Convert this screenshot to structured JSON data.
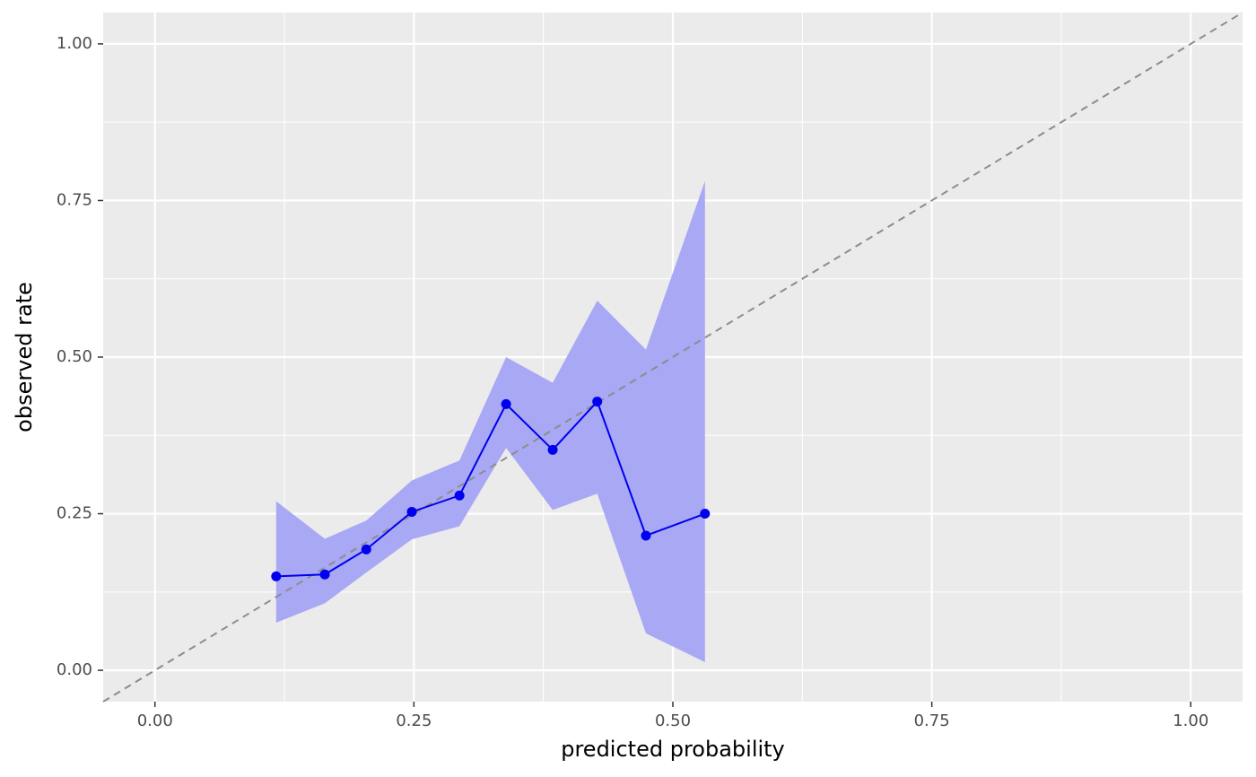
{
  "chart_data": {
    "type": "line",
    "x_label": "predicted probability",
    "y_label": "observed rate",
    "x": [
      0.117,
      0.164,
      0.204,
      0.248,
      0.294,
      0.339,
      0.384,
      0.427,
      0.474,
      0.531
    ],
    "series": [
      {
        "color": "#0000ee",
        "band_color": "#a8a8f4",
        "values": [
          0.15,
          0.153,
          0.193,
          0.253,
          0.279,
          0.425,
          0.352,
          0.429,
          0.215,
          0.25
        ],
        "upper": [
          0.27,
          0.21,
          0.239,
          0.303,
          0.335,
          0.5,
          0.459,
          0.59,
          0.512,
          0.781
        ],
        "lower": [
          0.076,
          0.107,
          0.156,
          0.209,
          0.23,
          0.355,
          0.256,
          0.282,
          0.059,
          0.013
        ]
      }
    ],
    "reference_line": {
      "slope": 1,
      "intercept": 0,
      "color": "#8c8c8c",
      "dashed": true
    },
    "xlim": [
      -0.05,
      1.05
    ],
    "ylim": [
      -0.05,
      1.05
    ],
    "xticks": [
      {
        "value": 0,
        "label": "0.00"
      },
      {
        "value": 0.25,
        "label": "0.25"
      },
      {
        "value": 0.5,
        "label": "0.50"
      },
      {
        "value": 0.75,
        "label": "0.75"
      },
      {
        "value": 1,
        "label": "1.00"
      }
    ],
    "yticks": [
      {
        "value": 0,
        "label": "0.00"
      },
      {
        "value": 0.25,
        "label": "0.25"
      },
      {
        "value": 0.5,
        "label": "0.50"
      },
      {
        "value": 0.75,
        "label": "0.75"
      },
      {
        "value": 1,
        "label": "1.00"
      }
    ],
    "xminorticks": [
      0.125,
      0.375,
      0.625,
      0.875
    ],
    "yminorticks": [
      0.125,
      0.375,
      0.625,
      0.875
    ],
    "grid": true
  }
}
